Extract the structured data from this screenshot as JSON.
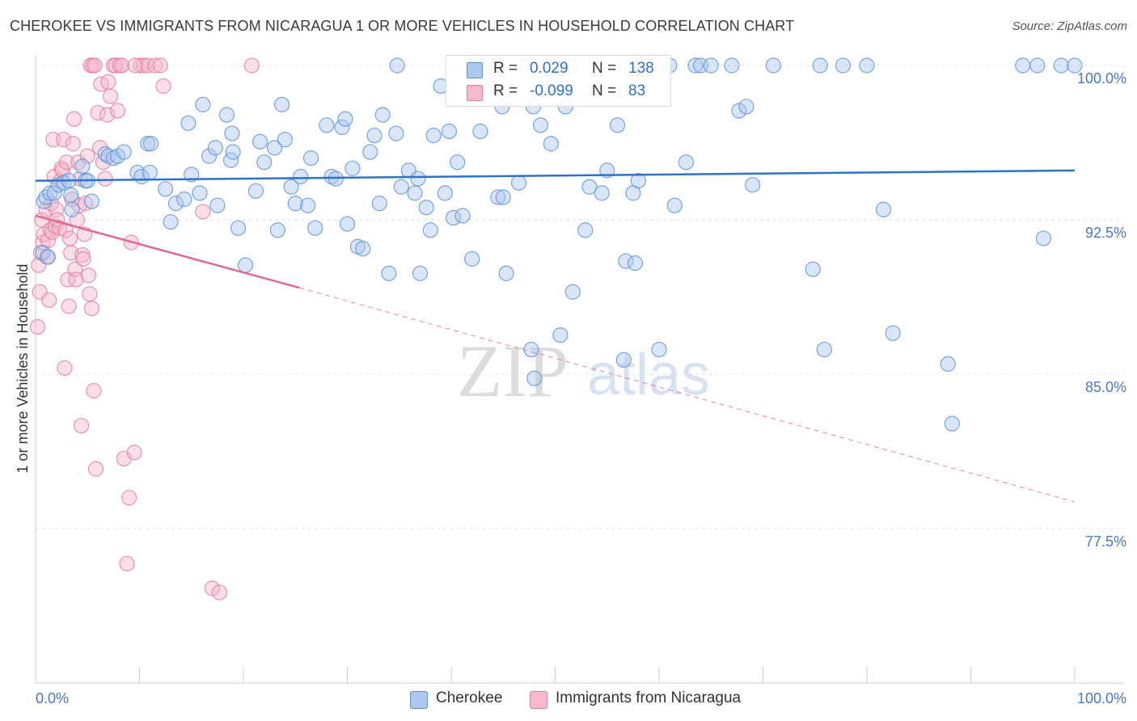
{
  "title": "CHEROKEE VS IMMIGRANTS FROM NICARAGUA 1 OR MORE VEHICLES IN HOUSEHOLD CORRELATION CHART",
  "source": "Source: ZipAtlas.com",
  "watermark": {
    "zip": "ZIP",
    "atlas": "atlas"
  },
  "legend": {
    "rows": [
      {
        "r_label": "R =",
        "r_value": "0.029",
        "n_label": "N =",
        "n_value": "138"
      },
      {
        "r_label": "R =",
        "r_value": "-0.099",
        "n_label": "N =",
        "n_value": "83"
      }
    ]
  },
  "bottom_legend": [
    "Cherokee",
    "Immigrants from Nicaragua"
  ],
  "colors": {
    "blue_fill": "#aac8f0",
    "blue_stroke": "#5b8fd6",
    "blue_line": "#2f72c9",
    "pink_fill": "#f5b8cc",
    "pink_stroke": "#e07ba0",
    "pink_line": "#e06892",
    "tick_label": "#4a78c4",
    "grid": "#dde3ea"
  },
  "chart_data": {
    "type": "scatter",
    "title": "CHEROKEE VS IMMIGRANTS FROM NICARAGUA 1 OR MORE VEHICLES IN HOUSEHOLD CORRELATION CHART",
    "xlabel": "",
    "ylabel": "1 or more Vehicles in Household",
    "xlim": [
      0,
      105
    ],
    "ylim": [
      70.8,
      101.7
    ],
    "x_tick_labels": [
      "0.0%",
      "100.0%"
    ],
    "y_ticks": [
      100.0,
      92.5,
      85.0,
      77.5
    ],
    "y_tick_labels": [
      "100.0%",
      "92.5%",
      "85.0%",
      "77.5%"
    ],
    "grid": true,
    "series": [
      {
        "name": "Cherokee",
        "r": 0.029,
        "n": 138,
        "trend": {
          "x": [
            0,
            100
          ],
          "y": [
            94.4,
            94.9
          ]
        },
        "points": [
          [
            0.7,
            90.9
          ],
          [
            0.8,
            93.4
          ],
          [
            1.0,
            93.6
          ],
          [
            1.2,
            90.7
          ],
          [
            1.4,
            93.8
          ],
          [
            1.8,
            93.8
          ],
          [
            2.2,
            94.2
          ],
          [
            2.7,
            94.3
          ],
          [
            3.2,
            94.4
          ],
          [
            3.4,
            93.7
          ],
          [
            3.5,
            93.0
          ],
          [
            4.5,
            95.1
          ],
          [
            4.8,
            94.4
          ],
          [
            5.0,
            94.4
          ],
          [
            5.4,
            93.4
          ],
          [
            6.7,
            95.7
          ],
          [
            7.0,
            95.6
          ],
          [
            7.5,
            95.5
          ],
          [
            7.9,
            95.6
          ],
          [
            8.5,
            95.8
          ],
          [
            9.8,
            94.8
          ],
          [
            10.8,
            96.2
          ],
          [
            11.1,
            96.2
          ],
          [
            10.2,
            94.6
          ],
          [
            11.0,
            94.8
          ],
          [
            12.5,
            94.0
          ],
          [
            13.0,
            92.4
          ],
          [
            13.5,
            93.3
          ],
          [
            14.3,
            93.5
          ],
          [
            14.7,
            97.2
          ],
          [
            15.0,
            94.7
          ],
          [
            15.8,
            93.8
          ],
          [
            16.1,
            98.1
          ],
          [
            16.7,
            95.6
          ],
          [
            17.3,
            96.0
          ],
          [
            17.5,
            93.2
          ],
          [
            18.4,
            97.6
          ],
          [
            18.8,
            95.4
          ],
          [
            18.9,
            96.7
          ],
          [
            19.0,
            95.8
          ],
          [
            19.5,
            92.1
          ],
          [
            20.2,
            90.3
          ],
          [
            21.2,
            93.9
          ],
          [
            21.6,
            96.3
          ],
          [
            22.0,
            95.3
          ],
          [
            23.0,
            96.0
          ],
          [
            23.3,
            92.0
          ],
          [
            23.7,
            98.1
          ],
          [
            24.0,
            96.4
          ],
          [
            24.6,
            94.1
          ],
          [
            25.0,
            93.3
          ],
          [
            25.5,
            94.6
          ],
          [
            26.2,
            93.2
          ],
          [
            26.5,
            95.5
          ],
          [
            26.9,
            92.1
          ],
          [
            28.0,
            97.1
          ],
          [
            28.5,
            94.6
          ],
          [
            28.9,
            94.5
          ],
          [
            29.5,
            97.0
          ],
          [
            29.8,
            97.4
          ],
          [
            30.0,
            92.3
          ],
          [
            30.5,
            95.0
          ],
          [
            31.0,
            91.2
          ],
          [
            31.5,
            91.1
          ],
          [
            32.2,
            95.8
          ],
          [
            32.6,
            96.6
          ],
          [
            33.1,
            93.3
          ],
          [
            33.4,
            97.6
          ],
          [
            34.0,
            89.9
          ],
          [
            34.7,
            96.7
          ],
          [
            34.8,
            100.0
          ],
          [
            35.2,
            94.1
          ],
          [
            35.9,
            94.9
          ],
          [
            36.5,
            93.8
          ],
          [
            36.8,
            94.5
          ],
          [
            37.0,
            89.9
          ],
          [
            37.6,
            93.1
          ],
          [
            38.0,
            92.0
          ],
          [
            38.3,
            96.6
          ],
          [
            39.0,
            99.0
          ],
          [
            39.4,
            93.8
          ],
          [
            39.8,
            96.8
          ],
          [
            40.2,
            92.6
          ],
          [
            40.6,
            95.3
          ],
          [
            41.1,
            92.7
          ],
          [
            42.0,
            90.6
          ],
          [
            42.8,
            96.8
          ],
          [
            43.5,
            100.0
          ],
          [
            44.0,
            99.0
          ],
          [
            44.5,
            93.6
          ],
          [
            44.9,
            98.0
          ],
          [
            45.0,
            93.6
          ],
          [
            45.3,
            89.9
          ],
          [
            46.5,
            94.3
          ],
          [
            47.2,
            100.0
          ],
          [
            47.7,
            86.2
          ],
          [
            47.9,
            98.0
          ],
          [
            48.0,
            84.8
          ],
          [
            48.6,
            97.1
          ],
          [
            49.6,
            96.2
          ],
          [
            50.1,
            99.0
          ],
          [
            50.5,
            86.9
          ],
          [
            51.0,
            98.0
          ],
          [
            51.5,
            100.0
          ],
          [
            51.7,
            89.0
          ],
          [
            52.9,
            92.0
          ],
          [
            53.3,
            94.1
          ],
          [
            54.5,
            93.8
          ],
          [
            55.0,
            94.9
          ],
          [
            56.0,
            97.1
          ],
          [
            56.6,
            85.7
          ],
          [
            56.8,
            90.5
          ],
          [
            57.5,
            93.8
          ],
          [
            58.0,
            94.4
          ],
          [
            57.7,
            90.4
          ],
          [
            58.4,
            100.0
          ],
          [
            60.0,
            86.2
          ],
          [
            61.0,
            100.0
          ],
          [
            61.5,
            93.2
          ],
          [
            62.6,
            95.3
          ],
          [
            63.5,
            100.0
          ],
          [
            64.0,
            100.0
          ],
          [
            65.0,
            100.0
          ],
          [
            67.0,
            100.0
          ],
          [
            67.7,
            97.8
          ],
          [
            68.4,
            98.0
          ],
          [
            69.0,
            94.2
          ],
          [
            71.0,
            100.0
          ],
          [
            74.8,
            90.1
          ],
          [
            75.5,
            100.0
          ],
          [
            75.9,
            86.2
          ],
          [
            77.7,
            100.0
          ],
          [
            80.0,
            100.0
          ],
          [
            81.6,
            93.0
          ],
          [
            82.5,
            87.0
          ],
          [
            87.8,
            85.5
          ],
          [
            88.2,
            82.6
          ],
          [
            95.0,
            100.0
          ],
          [
            96.4,
            100.0
          ],
          [
            97.0,
            91.6
          ],
          [
            98.7,
            100.0
          ],
          [
            100.0,
            100.0
          ]
        ]
      },
      {
        "name": "Immigrants from Nicaragua",
        "r": -0.099,
        "n": 83,
        "trend": {
          "x": [
            0,
            25.4
          ],
          "y": [
            92.7,
            89.2
          ]
        },
        "trend_dashed": {
          "x": [
            25.4,
            100
          ],
          "y": [
            89.2,
            78.8
          ]
        },
        "points": [
          [
            0.2,
            87.3
          ],
          [
            0.3,
            90.3
          ],
          [
            0.4,
            89.0
          ],
          [
            0.5,
            90.9
          ],
          [
            0.6,
            92.5
          ],
          [
            0.7,
            91.4
          ],
          [
            0.8,
            91.8
          ],
          [
            1.0,
            93.0
          ],
          [
            1.1,
            90.7
          ],
          [
            1.2,
            91.5
          ],
          [
            1.3,
            88.6
          ],
          [
            1.4,
            92.0
          ],
          [
            1.5,
            93.3
          ],
          [
            1.6,
            91.9
          ],
          [
            1.7,
            96.4
          ],
          [
            1.8,
            94.6
          ],
          [
            1.9,
            92.2
          ],
          [
            2.0,
            93.0
          ],
          [
            2.1,
            92.5
          ],
          [
            2.3,
            92.1
          ],
          [
            2.4,
            94.4
          ],
          [
            2.5,
            95.0
          ],
          [
            2.6,
            94.9
          ],
          [
            2.7,
            96.4
          ],
          [
            2.8,
            85.3
          ],
          [
            2.9,
            92.0
          ],
          [
            3.0,
            95.3
          ],
          [
            3.1,
            89.6
          ],
          [
            3.2,
            88.3
          ],
          [
            3.3,
            91.6
          ],
          [
            3.4,
            90.9
          ],
          [
            3.5,
            93.5
          ],
          [
            3.6,
            96.2
          ],
          [
            3.7,
            97.4
          ],
          [
            3.8,
            90.1
          ],
          [
            3.9,
            89.6
          ],
          [
            4.0,
            92.5
          ],
          [
            4.1,
            95.3
          ],
          [
            4.2,
            93.2
          ],
          [
            4.3,
            94.5
          ],
          [
            4.4,
            82.5
          ],
          [
            4.5,
            90.8
          ],
          [
            4.6,
            90.6
          ],
          [
            4.7,
            91.8
          ],
          [
            4.8,
            93.3
          ],
          [
            5.0,
            95.6
          ],
          [
            5.1,
            89.8
          ],
          [
            5.2,
            88.9
          ],
          [
            5.4,
            88.2
          ],
          [
            5.6,
            84.2
          ],
          [
            5.8,
            80.4
          ],
          [
            6.0,
            97.7
          ],
          [
            6.2,
            96.0
          ],
          [
            6.3,
            99.1
          ],
          [
            6.5,
            95.3
          ],
          [
            6.7,
            94.5
          ],
          [
            6.9,
            97.6
          ],
          [
            7.0,
            99.2
          ],
          [
            7.2,
            98.5
          ],
          [
            7.5,
            100.0
          ],
          [
            7.7,
            100.0
          ],
          [
            7.9,
            97.8
          ],
          [
            8.1,
            100.0
          ],
          [
            8.3,
            100.0
          ],
          [
            8.5,
            80.9
          ],
          [
            8.8,
            75.8
          ],
          [
            9.0,
            79.0
          ],
          [
            9.2,
            91.4
          ],
          [
            9.5,
            81.2
          ],
          [
            10.1,
            100.0
          ],
          [
            10.4,
            100.0
          ],
          [
            10.8,
            100.0
          ],
          [
            11.5,
            100.0
          ],
          [
            12.0,
            100.0
          ],
          [
            12.3,
            99.0
          ],
          [
            5.3,
            100.0
          ],
          [
            5.5,
            100.0
          ],
          [
            5.7,
            100.0
          ],
          [
            16.1,
            92.9
          ],
          [
            17.0,
            74.6
          ],
          [
            17.7,
            74.4
          ],
          [
            20.8,
            100.0
          ],
          [
            9.6,
            100.0
          ]
        ]
      }
    ]
  }
}
